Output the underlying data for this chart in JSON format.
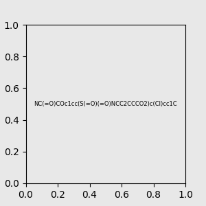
{
  "smiles": "NC(=O)COc1cc(S(=O)(=O)NCC2CCCO2)c(Cl)cc1C",
  "image_size": 300,
  "background_color": "#e8e8e8",
  "title": ""
}
